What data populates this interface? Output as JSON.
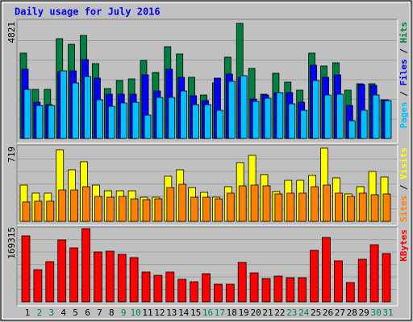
{
  "chart_data": {
    "type": "bar",
    "title": "Daily usage for July 2016",
    "categories": [
      "1",
      "2",
      "3",
      "4",
      "5",
      "6",
      "7",
      "8",
      "9",
      "10",
      "11",
      "12",
      "13",
      "14",
      "15",
      "16",
      "17",
      "18",
      "19",
      "20",
      "21",
      "22",
      "23",
      "24",
      "25",
      "26",
      "27",
      "28",
      "29",
      "30",
      "31"
    ],
    "category_colors": [
      "#000000",
      "#00805c",
      "#00805c",
      "#000000",
      "#000000",
      "#000000",
      "#000000",
      "#000000",
      "#00805c",
      "#00805c",
      "#000000",
      "#000000",
      "#000000",
      "#000000",
      "#000000",
      "#00805c",
      "#00805c",
      "#000000",
      "#000000",
      "#000000",
      "#000000",
      "#000000",
      "#00805c",
      "#00805c",
      "#000000",
      "#000000",
      "#000000",
      "#000000",
      "#000000",
      "#00805c",
      "#00805c"
    ],
    "panels": [
      {
        "ylim": [
          0,
          4821
        ],
        "yticks": [
          4821
        ],
        "series": [
          {
            "name": "Hits",
            "color": "#008040",
            "values": [
              3574,
              2056,
              2056,
              4180,
              3944,
              4315,
              3135,
              2090,
              2427,
              2495,
              3270,
              2764,
              3843,
              3540,
              2562,
              1820,
              2326,
              3405,
              4821,
              2933,
              1854,
              2731,
              2360,
              2023,
              3574,
              3034,
              3169,
              2023,
              2292,
              2292,
              1618
            ]
          },
          {
            "name": "Files",
            "color": "#0000ff",
            "values": [
              2899,
              1517,
              1416,
              2798,
              2832,
              3304,
              2528,
              1854,
              1854,
              1854,
              2663,
              1989,
              2899,
              2562,
              1787,
              1584,
              2528,
              2697,
              2562,
              1652,
              1820,
              1921,
              1921,
              1517,
              3068,
              2562,
              2663,
              1382,
              2259,
              2225,
              1618
            ]
          },
          {
            "name": "Pages",
            "color": "#00c0ff",
            "values": [
              2056,
              1382,
              1382,
              2832,
              2326,
              2596,
              1618,
              1348,
              1483,
              1517,
              978,
              1719,
              1719,
              1989,
              1416,
              1416,
              1180,
              2393,
              2630,
              1551,
              1686,
              1921,
              1450,
              1180,
              2427,
              1820,
              1854,
              742,
              1180,
              1820,
              1584
            ]
          }
        ]
      },
      {
        "ylim": [
          0,
          719
        ],
        "yticks": [
          719
        ],
        "series": [
          {
            "name": "Visits",
            "color": "#ffff00",
            "values": [
              356,
              277,
              277,
              703,
              506,
              585,
              356,
              300,
              300,
              300,
              237,
              237,
              443,
              506,
              332,
              285,
              237,
              340,
              577,
              648,
              459,
              293,
              403,
              403,
              451,
              719,
              427,
              269,
              340,
              490,
              435
            ]
          },
          {
            "name": "Sites",
            "color": "#ff8000",
            "values": [
              190,
              198,
              198,
              308,
              308,
              340,
              245,
              237,
              245,
              221,
              213,
              221,
              332,
              364,
              237,
              237,
              221,
              277,
              348,
              356,
              348,
              269,
              277,
              277,
              340,
              356,
              277,
              245,
              277,
              261,
              269
            ]
          }
        ]
      },
      {
        "ylim": [
          0,
          169315
        ],
        "yticks": [
          169315
        ],
        "series": [
          {
            "name": "KBytes",
            "color": "#ff0000",
            "values": [
              152600,
              74400,
              93000,
              143300,
              124700,
              169315,
              115400,
              117200,
              109800,
              102400,
              68900,
              61400,
              68900,
              52100,
              46500,
              65100,
              40900,
              40900,
              91200,
              67000,
              54000,
              59600,
              55800,
              55800,
              119100,
              148900,
              94900,
              44700,
              98600,
              132100,
              111700
            ]
          }
        ]
      }
    ]
  }
}
